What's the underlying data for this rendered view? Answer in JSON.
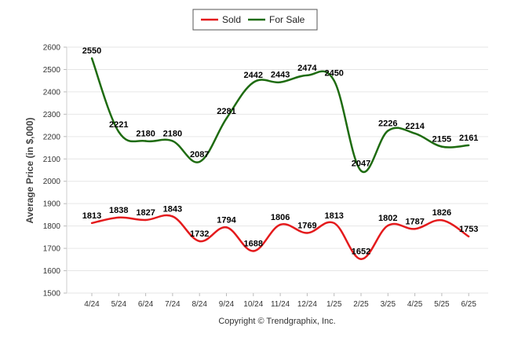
{
  "chart_data": {
    "type": "line",
    "title": "",
    "xlabel": "",
    "ylabel": "Average Price (in $,000)",
    "ylim": [
      1500,
      2600
    ],
    "yticks": [
      1500,
      1600,
      1700,
      1800,
      1900,
      2000,
      2100,
      2200,
      2300,
      2400,
      2500,
      2600
    ],
    "grid": "horizontal",
    "legend_position": "top-center",
    "categories": [
      "4/24",
      "5/24",
      "6/24",
      "7/24",
      "8/24",
      "9/24",
      "10/24",
      "11/24",
      "12/24",
      "1/25",
      "2/25",
      "3/25",
      "4/25",
      "5/25",
      "6/25"
    ],
    "series": [
      {
        "name": "Sold",
        "color": "#e41a1c",
        "values": [
          1813,
          1838,
          1827,
          1843,
          1732,
          1794,
          1688,
          1806,
          1769,
          1813,
          1652,
          1802,
          1787,
          1826,
          1753
        ]
      },
      {
        "name": "For Sale",
        "color": "#1e6b10",
        "values": [
          2550,
          2221,
          2180,
          2180,
          2087,
          2281,
          2442,
          2443,
          2474,
          2450,
          2047,
          2226,
          2214,
          2155,
          2161
        ]
      }
    ],
    "footer": "Copyright © Trendgraphix, Inc."
  }
}
